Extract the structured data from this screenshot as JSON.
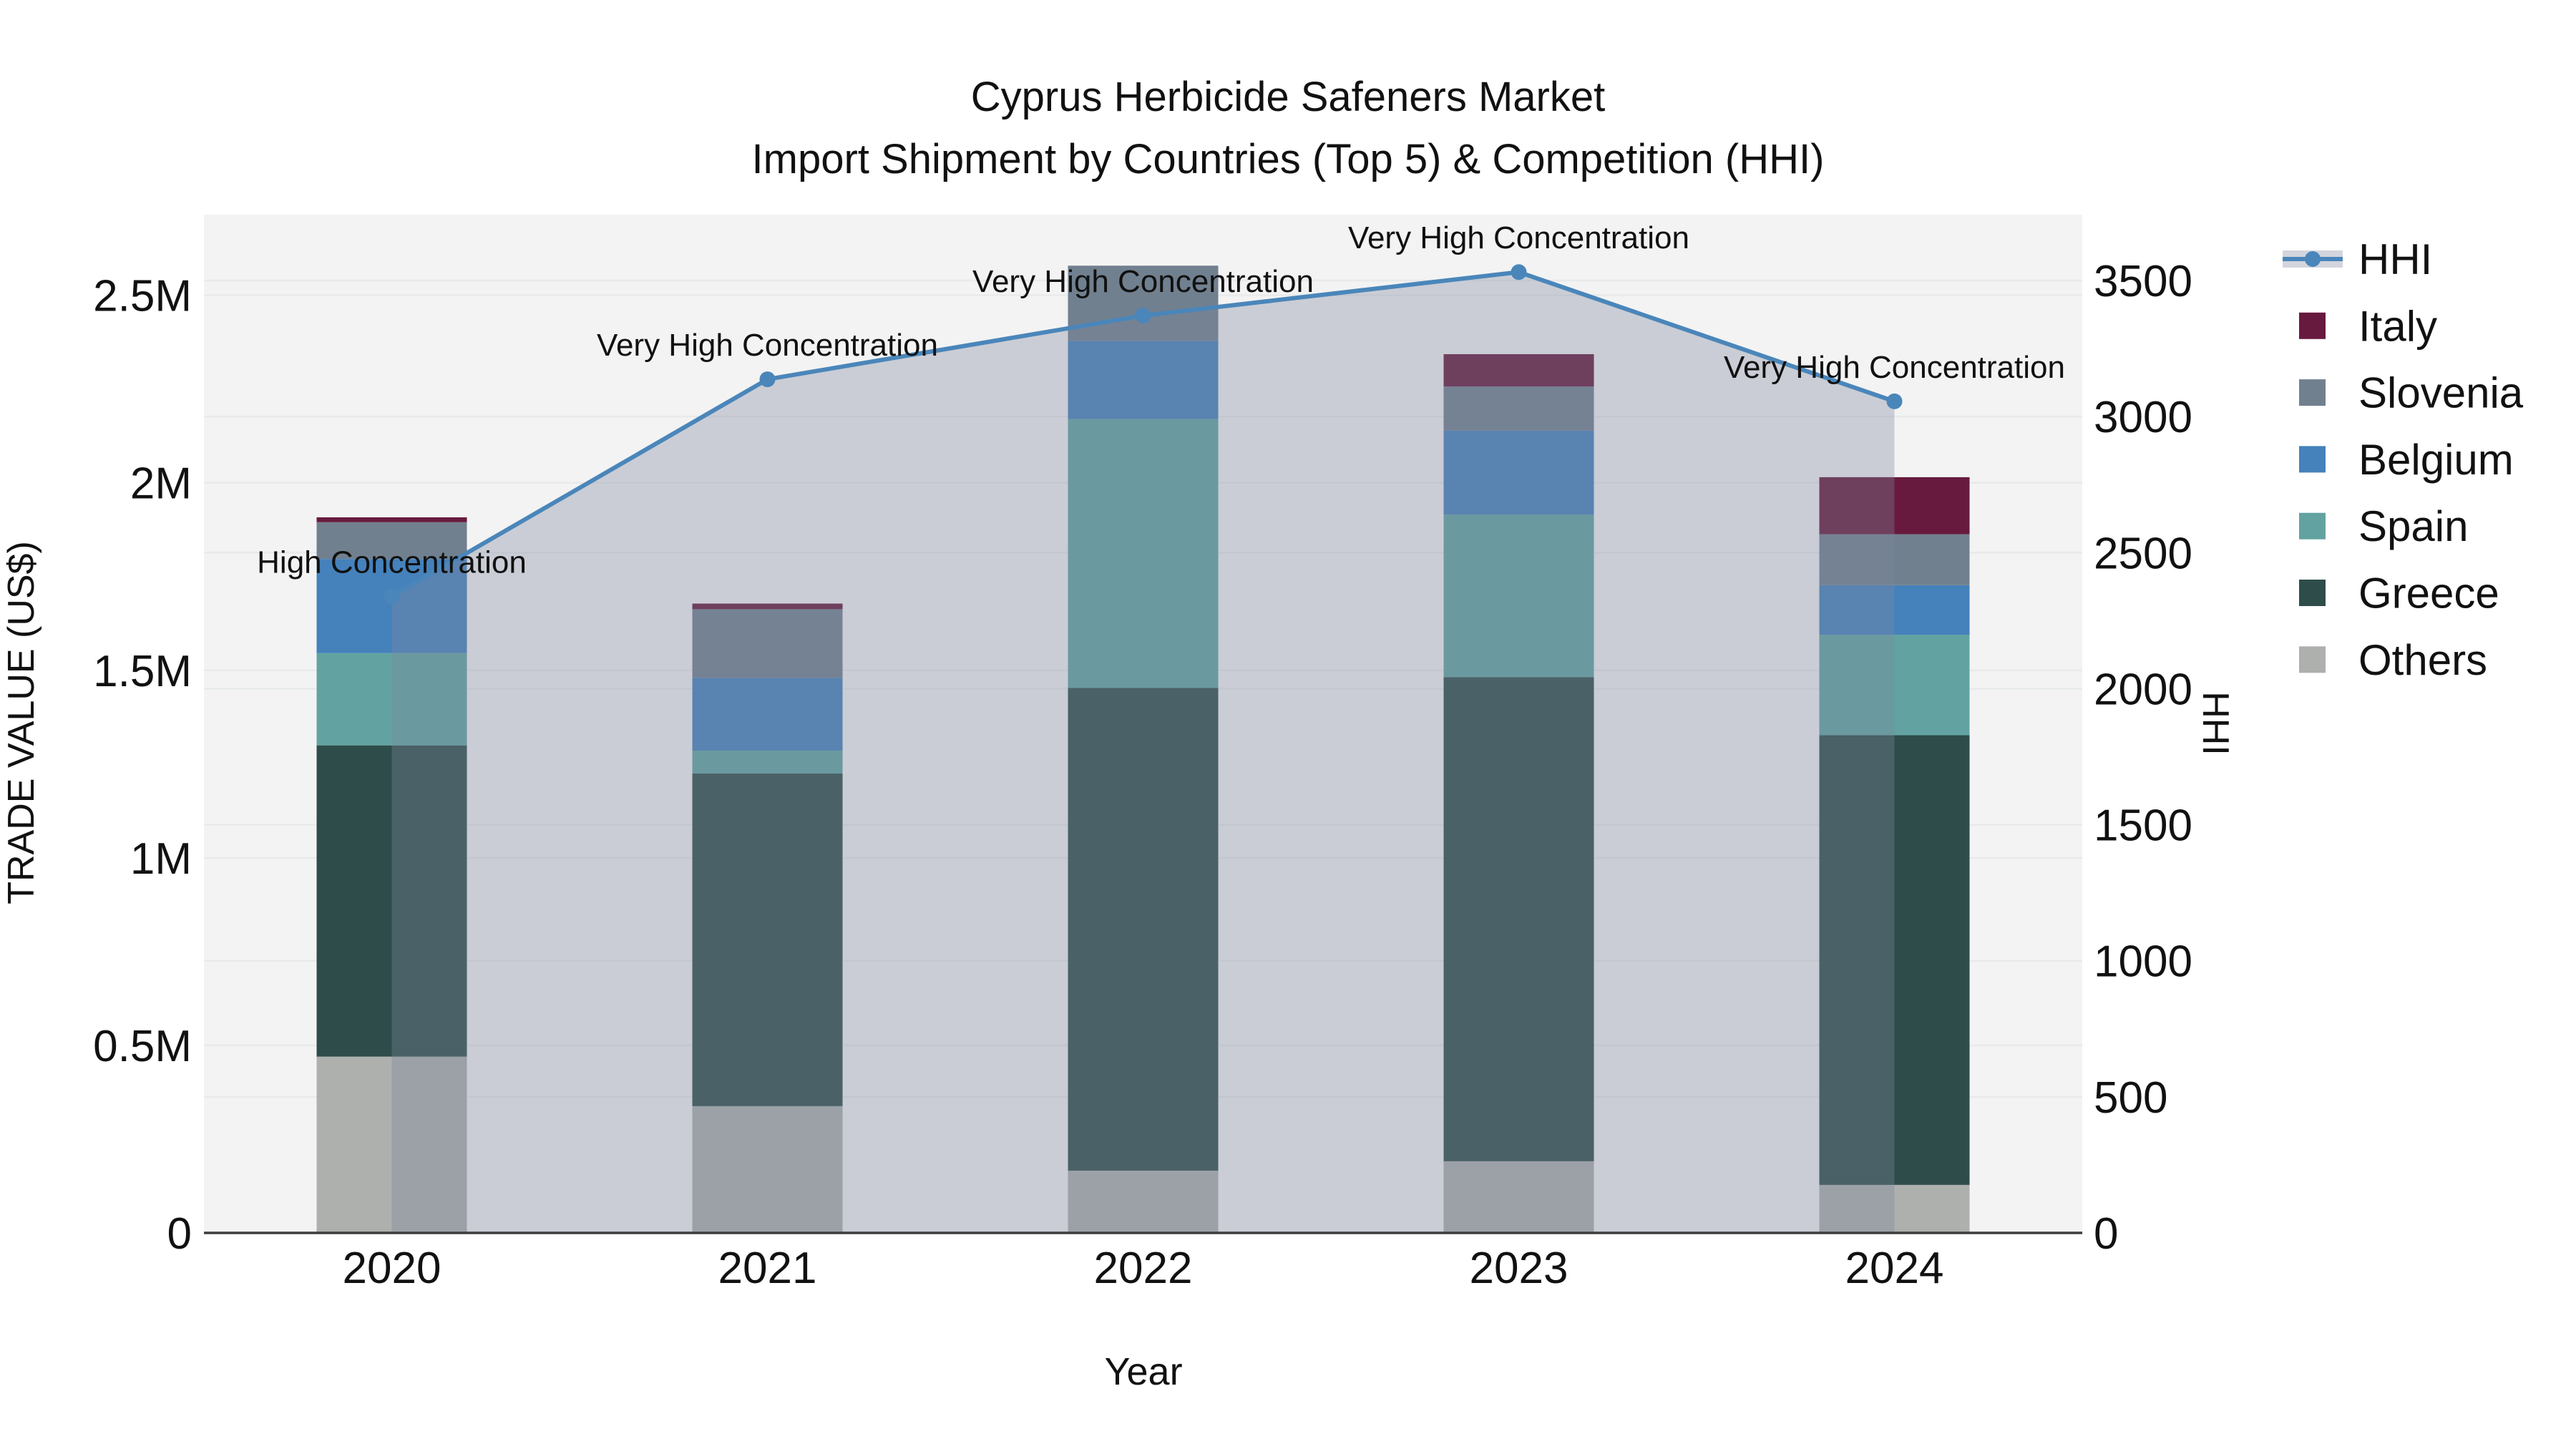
{
  "title": {
    "line1": "Cyprus Herbicide Safeners Market",
    "line2": "Import Shipment by Countries (Top 5) & Competition (HHI)"
  },
  "chart_data": {
    "type": "combo: stacked-bar (left axis) + line-with-area (right axis)",
    "title": "Cyprus Herbicide Safeners Market — Import Shipment by Countries (Top 5) & Competition (HHI)",
    "xlabel": "Year",
    "ylabel_left": "TRADE VALUE (US$)",
    "ylabel_right": "HHI",
    "categories": [
      "2020",
      "2021",
      "2022",
      "2023",
      "2024"
    ],
    "bar_unit": "US$",
    "series": [
      {
        "name": "Others",
        "color": "#adb0ad",
        "values": [
          470000,
          338000,
          166000,
          191000,
          128000
        ]
      },
      {
        "name": "Greece",
        "color": "#2e4d4a",
        "values": [
          830000,
          887000,
          1287000,
          1291000,
          1199000
        ]
      },
      {
        "name": "Spain",
        "color": "#62a3a2",
        "values": [
          246000,
          61000,
          717000,
          433000,
          268000
        ]
      },
      {
        "name": "Belgium",
        "color": "#4581bb",
        "values": [
          251000,
          194000,
          208000,
          224000,
          132000
        ]
      },
      {
        "name": "Slovenia",
        "color": "#71808f",
        "values": [
          98000,
          183000,
          201000,
          118000,
          136000
        ]
      },
      {
        "name": "Italy",
        "color": "#671a3d",
        "values": [
          13000,
          15000,
          0,
          86000,
          152000
        ]
      }
    ],
    "line_series": {
      "name": "HHI",
      "axis": "right",
      "color": "#4a86ba",
      "area_fill": "rgba(125,134,157,0.35)",
      "values": [
        2339,
        3137,
        3371,
        3531,
        3056
      ]
    },
    "annotations": [
      {
        "x": "2020",
        "text": "High Concentration"
      },
      {
        "x": "2021",
        "text": "Very High Concentration"
      },
      {
        "x": "2022",
        "text": "Very High Concentration"
      },
      {
        "x": "2023",
        "text": "Very High Concentration"
      },
      {
        "x": "2024",
        "text": "Very High Concentration"
      }
    ],
    "ylim_left": [
      0,
      2715000
    ],
    "ylim_right": [
      0,
      3742
    ],
    "yticks_left": [
      {
        "v": 0,
        "label": "0"
      },
      {
        "v": 500000,
        "label": "0.5M"
      },
      {
        "v": 1000000,
        "label": "1M"
      },
      {
        "v": 1500000,
        "label": "1.5M"
      },
      {
        "v": 2000000,
        "label": "2M"
      },
      {
        "v": 2500000,
        "label": "2.5M"
      }
    ],
    "yticks_right": [
      {
        "v": 0,
        "label": "0"
      },
      {
        "v": 500,
        "label": "500"
      },
      {
        "v": 1000,
        "label": "1000"
      },
      {
        "v": 1500,
        "label": "1500"
      },
      {
        "v": 2000,
        "label": "2000"
      },
      {
        "v": 2500,
        "label": "2500"
      },
      {
        "v": 3000,
        "label": "3000"
      },
      {
        "v": 3500,
        "label": "3500"
      }
    ],
    "grid": "horizontal gridlines for both axes' major ticks",
    "legend_position": "right"
  },
  "legend": {
    "items": [
      {
        "label": "HHI",
        "type": "line",
        "color": "#4a86ba"
      },
      {
        "label": "Italy",
        "type": "swatch",
        "color": "#671a3d"
      },
      {
        "label": "Slovenia",
        "type": "swatch",
        "color": "#71808f"
      },
      {
        "label": "Belgium",
        "type": "swatch",
        "color": "#4581bb"
      },
      {
        "label": "Spain",
        "type": "swatch",
        "color": "#62a3a2"
      },
      {
        "label": "Greece",
        "type": "swatch",
        "color": "#2e4d4a"
      },
      {
        "label": "Others",
        "type": "swatch",
        "color": "#adb0ad"
      }
    ]
  },
  "colors": {
    "plot_bg": "#f3f3f3",
    "grid_line": "#e8eaeb",
    "axis_line": "#3d3d3d",
    "hhi_line": "#4a86ba",
    "hhi_area": "rgba(125,134,157,0.35)",
    "text": "#111111"
  }
}
